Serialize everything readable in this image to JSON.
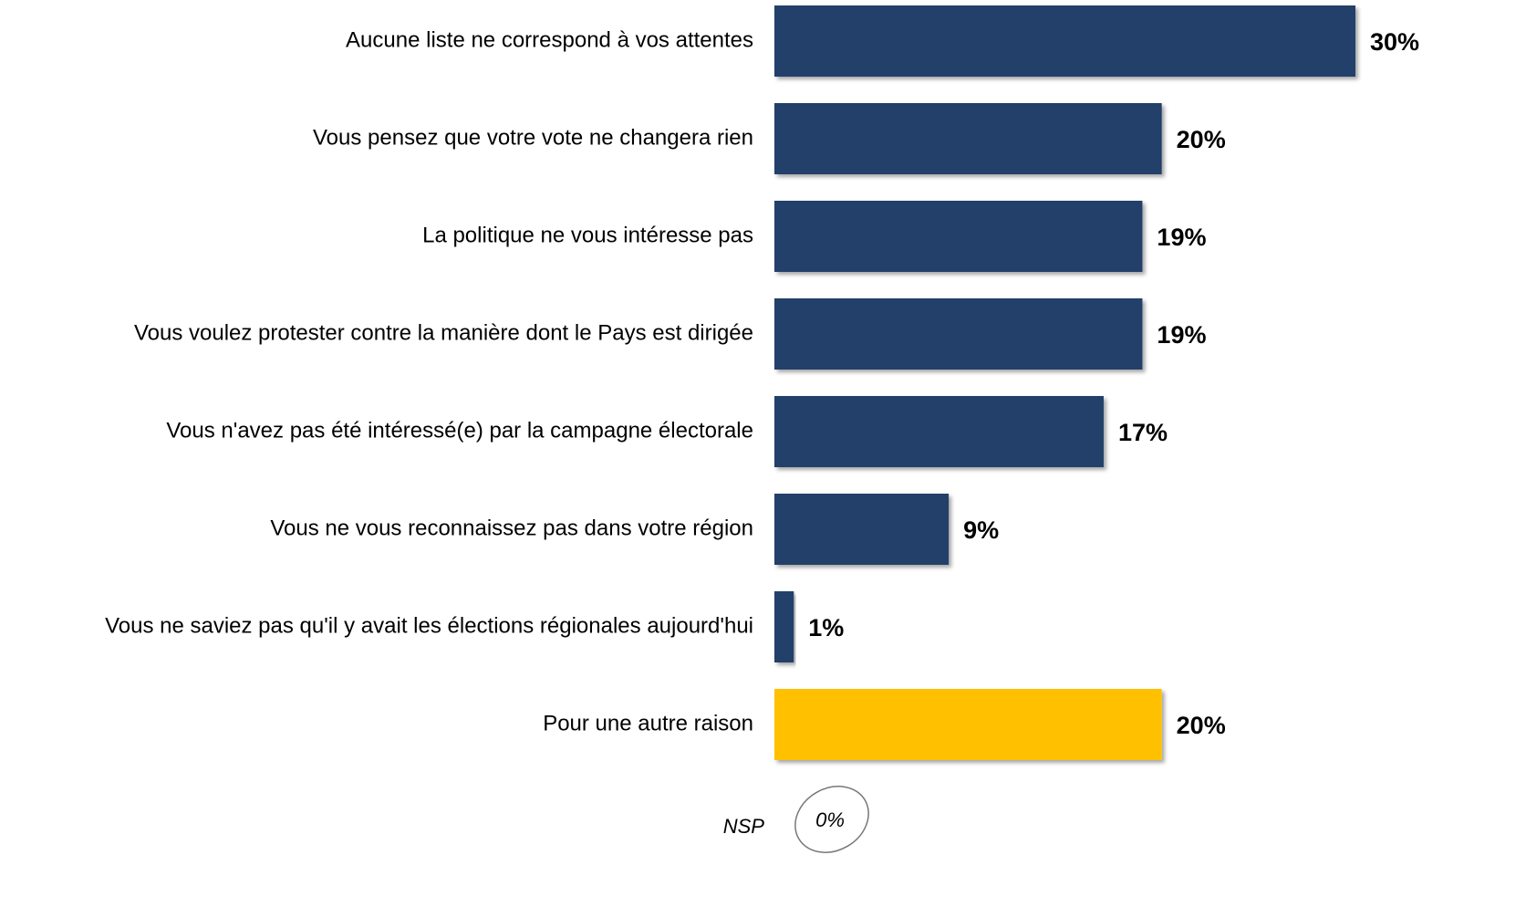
{
  "chart_data": {
    "type": "bar",
    "orientation": "horizontal",
    "categories": [
      "Aucune liste ne correspond à vos attentes",
      "Vous pensez que votre vote ne changera rien",
      "La politique ne vous intéresse pas",
      "Vous voulez protester contre la manière dont le Pays est dirigée",
      "Vous n'avez pas été intéressé(e) par la campagne électorale",
      "Vous ne vous reconnaissez pas dans votre région",
      "Vous ne saviez pas qu'il y avait les élections régionales aujourd'hui",
      "Pour une autre raison"
    ],
    "values": [
      30,
      20,
      19,
      19,
      17,
      9,
      1,
      20
    ],
    "value_labels": [
      "30%",
      "20%",
      "19%",
      "19%",
      "17%",
      "9%",
      "1%",
      "20%"
    ],
    "colors": [
      "#243f69",
      "#243f69",
      "#243f69",
      "#243f69",
      "#243f69",
      "#243f69",
      "#243f69",
      "#ffc000"
    ],
    "annotation": {
      "label": "NSP",
      "value": 0,
      "value_label": "0%"
    }
  }
}
